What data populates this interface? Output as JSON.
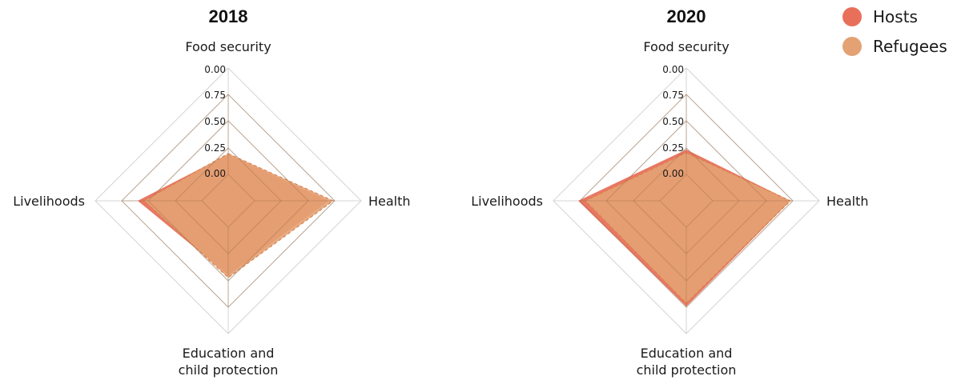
{
  "legend": [
    {
      "name": "Hosts",
      "color": "#e8705a"
    },
    {
      "name": "Refugees",
      "color": "#e4a274"
    }
  ],
  "chart_data": [
    {
      "type": "radar",
      "title": "2018",
      "axes": [
        "Food security",
        "Health",
        "Education and child protection",
        "Livelihoods"
      ],
      "axis_label_lines": [
        [
          "Food security"
        ],
        [
          "Health"
        ],
        [
          "Education and",
          "child protection"
        ],
        [
          "Livelihoods"
        ]
      ],
      "ticks": [
        "0.00",
        "0.25",
        "0.50",
        "0.75",
        "0.00"
      ],
      "grid": true,
      "series": [
        {
          "name": "Hosts",
          "values": [
            0.25,
            0.92,
            0.6,
            0.8
          ]
        },
        {
          "name": "Refugees",
          "values": [
            0.26,
            0.98,
            0.63,
            0.72
          ]
        }
      ]
    },
    {
      "type": "radar",
      "title": "2020",
      "axes": [
        "Food security",
        "Health",
        "Education and child protection",
        "Livelihoods"
      ],
      "axis_label_lines": [
        [
          "Food security"
        ],
        [
          "Health"
        ],
        [
          "Education and",
          "child protection"
        ],
        [
          "Livelihoods"
        ]
      ],
      "ticks": [
        "0.00",
        "0.25",
        "0.50",
        "0.75",
        "0.00"
      ],
      "grid": true,
      "series": [
        {
          "name": "Hosts",
          "values": [
            0.31,
            0.97,
            0.99,
            1.02
          ]
        },
        {
          "name": "Refugees",
          "values": [
            0.27,
            0.97,
            0.95,
            0.93
          ]
        }
      ]
    }
  ]
}
